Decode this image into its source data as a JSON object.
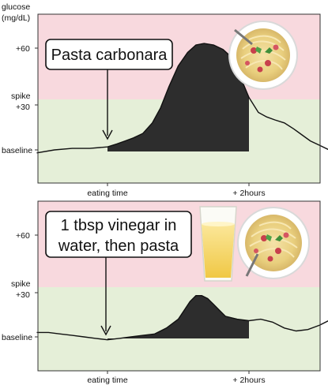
{
  "y_axis_label": [
    "glucose",
    "(mg/dL)"
  ],
  "chart_data": [
    {
      "type": "area",
      "callout": [
        "Pasta carbonara"
      ],
      "y_ticks": [
        {
          "label": [
            "+60"
          ],
          "value": 60
        },
        {
          "label": [
            "spike",
            "+30"
          ],
          "value": 30
        },
        {
          "label": [
            "baseline"
          ],
          "value": 0
        }
      ],
      "x_ticks": [
        {
          "label": "eating time",
          "value": 0
        },
        {
          "label": "+ 2hours",
          "value": 120
        }
      ],
      "zones": [
        {
          "name": "spike",
          "from": 30,
          "to": 90,
          "color": "#f8d9de"
        },
        {
          "name": "normal",
          "from": -20,
          "to": 30,
          "color": "#e5efd8"
        }
      ],
      "xlim": [
        -60,
        195
      ],
      "ylim": [
        -20,
        90
      ],
      "fill_range": [
        0,
        120
      ],
      "images": [
        "pasta-plate-icon"
      ],
      "x": [
        -60,
        -45,
        -30,
        -15,
        0,
        8,
        15,
        22,
        30,
        38,
        45,
        52,
        60,
        68,
        75,
        82,
        90,
        98,
        105,
        112,
        120,
        128,
        135,
        142,
        150,
        158,
        165,
        172,
        180,
        188,
        195
      ],
      "values": [
        -2,
        0,
        1,
        1,
        2,
        4,
        6,
        8,
        11,
        18,
        28,
        42,
        56,
        65,
        70,
        71,
        70,
        67,
        62,
        50,
        35,
        25,
        22,
        20,
        18,
        14,
        10,
        6,
        3,
        0,
        -2
      ]
    },
    {
      "type": "area",
      "callout": [
        "1 tbsp vinegar in",
        "water, then pasta"
      ],
      "y_ticks": [
        {
          "label": [
            "+60"
          ],
          "value": 60
        },
        {
          "label": [
            "spike",
            "+30"
          ],
          "value": 30
        },
        {
          "label": [
            "baseline"
          ],
          "value": 0
        }
      ],
      "x_ticks": [
        {
          "label": "eating time",
          "value": 0
        },
        {
          "label": "+ 2hours",
          "value": 120
        }
      ],
      "zones": [
        {
          "name": "spike",
          "from": 30,
          "to": 90,
          "color": "#f8d9de"
        },
        {
          "name": "normal",
          "from": -20,
          "to": 30,
          "color": "#e5efd8"
        }
      ],
      "xlim": [
        -60,
        195
      ],
      "ylim": [
        -20,
        90
      ],
      "fill_range": [
        0,
        120
      ],
      "images": [
        "juice-glass-icon",
        "pasta-plate-icon"
      ],
      "x": [
        -60,
        -50,
        -40,
        -30,
        -20,
        -10,
        0,
        10,
        20,
        30,
        40,
        50,
        60,
        65,
        70,
        75,
        80,
        85,
        90,
        95,
        100,
        110,
        120,
        130,
        140,
        150,
        160,
        170,
        180,
        190,
        195
      ],
      "values": [
        3,
        3,
        2,
        1,
        0,
        -1,
        -2,
        -1,
        0,
        1,
        2,
        6,
        12,
        18,
        24,
        28,
        28,
        26,
        22,
        18,
        14,
        12,
        11,
        12,
        10,
        6,
        4,
        5,
        8,
        12,
        12
      ]
    }
  ]
}
